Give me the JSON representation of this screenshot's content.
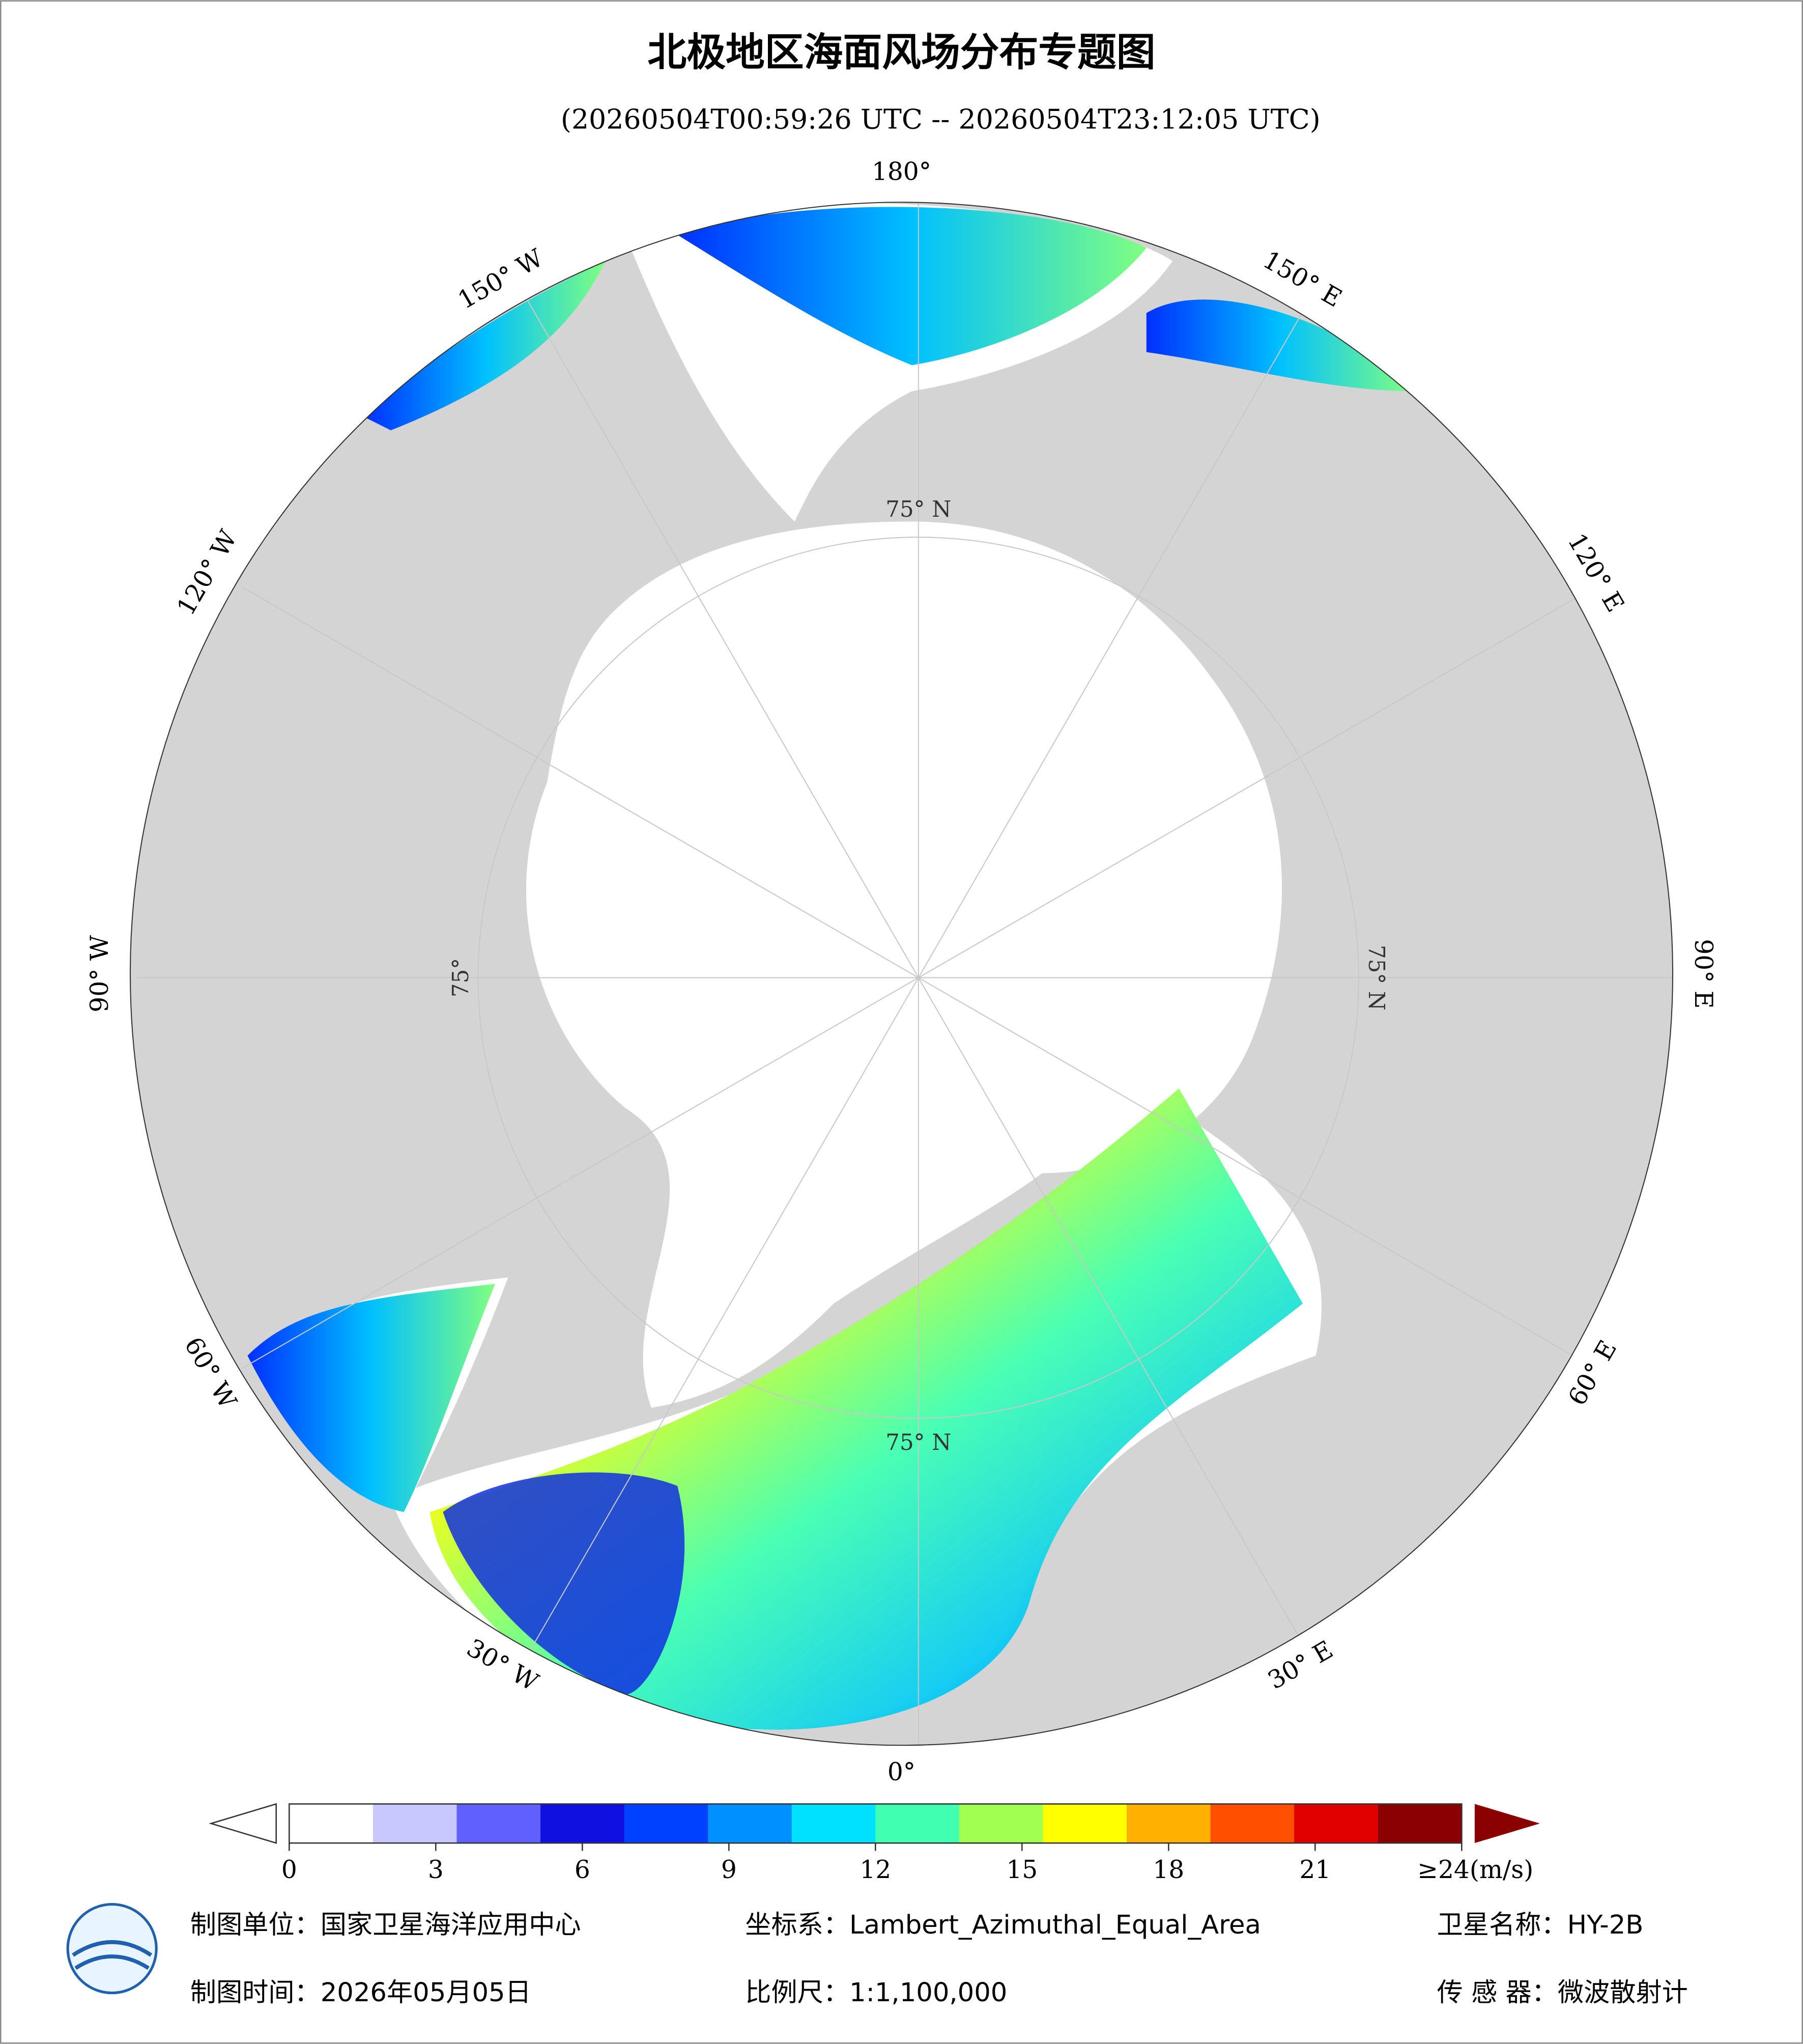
{
  "title": "北极地区海面风场分布专题图",
  "subtitle": "(20260504T00:59:26 UTC -- 20260504T23:12:05 UTC)",
  "map": {
    "longitude_labels": [
      "180°",
      "150° E",
      "120° E",
      "90° E",
      "60° E",
      "30° E",
      "0°",
      "30° W",
      "60° W",
      "90° W",
      "120° W",
      "150° W"
    ],
    "latitude_labels": [
      "75° N",
      "75° N",
      "75° N",
      "75°"
    ]
  },
  "colorbar": {
    "range": [
      0,
      24
    ],
    "ticks": [
      0,
      3,
      6,
      9,
      12,
      15,
      18,
      21,
      {
        "value": 24,
        "label": "≥24(m/s)"
      }
    ],
    "colors": [
      "#ffffff",
      "#c8c8ff",
      "#6060ff",
      "#1010e0",
      "#0040ff",
      "#0090ff",
      "#00e0ff",
      "#40ffb0",
      "#a0ff50",
      "#ffff00",
      "#ffb000",
      "#ff5000",
      "#e00000",
      "#8b0000"
    ]
  },
  "footer": {
    "unit": "制图单位：国家卫星海洋应用中心",
    "crs": "坐标系：Lambert_Azimuthal_Equal_Area",
    "satellite": "卫星名称：HY-2B",
    "date": "制图时间：2026年05月05日",
    "scale": "比例尺：1:1,100,000",
    "sensor": "传 感 器：微波散射计"
  }
}
